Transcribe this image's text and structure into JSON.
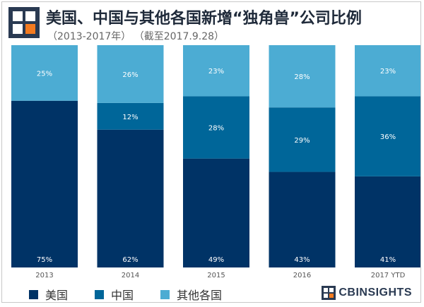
{
  "header": {
    "title": "美国、中国与其他各国新增“独角兽”公司比例",
    "subtitle": "（2013-2017年）  （截至2017.9.28）"
  },
  "brand": {
    "name": "CBINSIGHTS"
  },
  "colors": {
    "us": "#003366",
    "china": "#006699",
    "other": "#4cacd3"
  },
  "legend": [
    {
      "label": "美国",
      "key": "us"
    },
    {
      "label": "中国",
      "key": "china"
    },
    {
      "label": "其他各国",
      "key": "other"
    }
  ],
  "chart_data": {
    "type": "bar",
    "stacked": true,
    "categories": [
      "2013",
      "2014",
      "2015",
      "2016",
      "2017 YTD"
    ],
    "series": [
      {
        "name": "美国",
        "key": "us",
        "values": [
          75,
          62,
          49,
          43,
          41
        ],
        "labels": [
          "75%",
          "62%",
          "49%",
          "43%",
          "41%"
        ]
      },
      {
        "name": "中国",
        "key": "china",
        "values": [
          0,
          12,
          28,
          29,
          36
        ],
        "labels": [
          "",
          "12%",
          "28%",
          "29%",
          "36%"
        ]
      },
      {
        "name": "其他各国",
        "key": "other",
        "values": [
          25,
          26,
          23,
          28,
          23
        ],
        "labels": [
          "25%",
          "26%",
          "23%",
          "28%",
          "23%"
        ]
      }
    ],
    "ylim": [
      0,
      100
    ],
    "grid": false,
    "legend_position": "bottom-left"
  }
}
